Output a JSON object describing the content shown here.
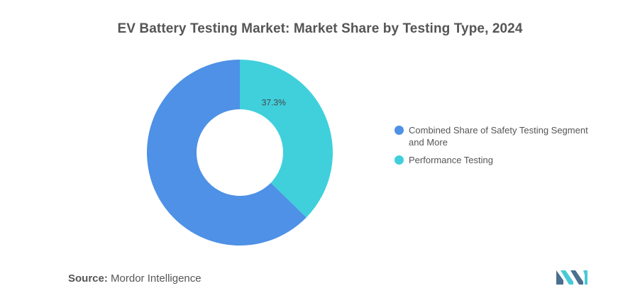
{
  "chart_data": {
    "type": "pie",
    "title": "EV Battery Testing Market: Market Share by Testing Type, 2024",
    "series": [
      {
        "name": "Combined Share of Safety Testing Segment and More",
        "value": 62.7,
        "color": "#4e91e6",
        "label": ""
      },
      {
        "name": "Performance Testing",
        "value": 37.3,
        "color": "#3fd0dc",
        "label": "37.3%"
      }
    ],
    "donut": true,
    "legend": "right"
  },
  "source": {
    "key": "Source:",
    "value": "Mordor Intelligence"
  },
  "colors": {
    "logo_dark": "#4b6f8f",
    "logo_light": "#49c9d6"
  },
  "icons": {
    "brand": "mordor-intelligence-logo-icon"
  }
}
